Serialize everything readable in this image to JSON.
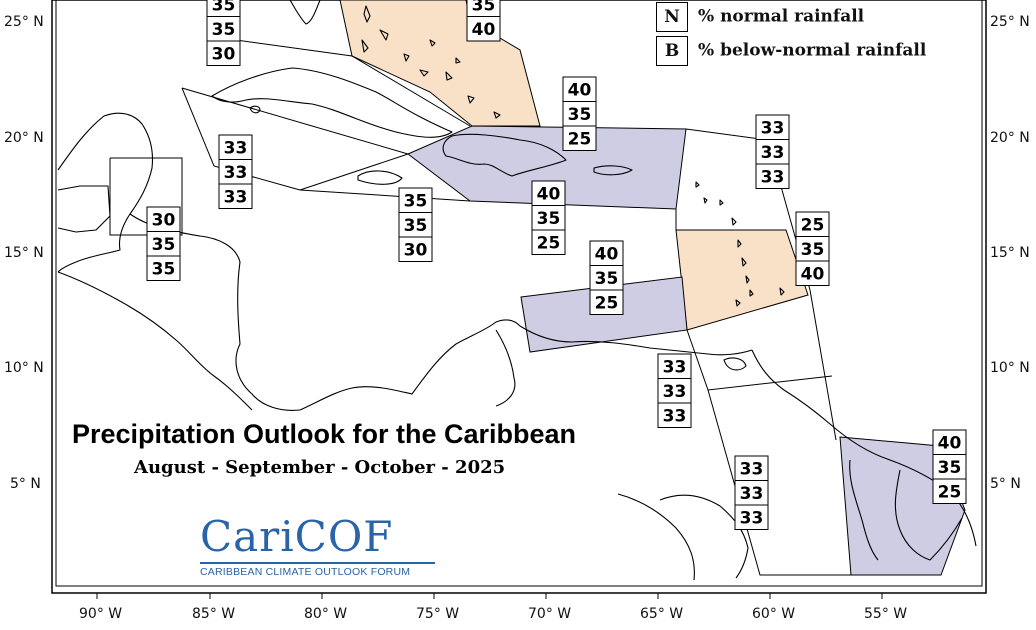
{
  "title": "Precipitation Outlook for the Caribbean",
  "subtitle": "August - September - October - 2025",
  "logo": {
    "wordmark": "CariCOF",
    "tagline": "CARIBBEAN CLIMATE OUTLOOK FORUM"
  },
  "legend": [
    {
      "key": "N",
      "label": "% normal rainfall"
    },
    {
      "key": "B",
      "label": "% below-normal rainfall"
    }
  ],
  "axes": {
    "lon_ticks": [
      "90° W",
      "85° W",
      "80° W",
      "75° W",
      "70° W",
      "65° W",
      "60° W",
      "55° W"
    ],
    "lat_ticks": [
      "25° N",
      "20° N",
      "15° N",
      "10° N",
      "5° N"
    ]
  },
  "colors": {
    "below_normal": "#cfcde4",
    "above_normal": "#f9e1c8",
    "outline": "#000000"
  },
  "probability_boxes": [
    {
      "region": "bahamas-north-west",
      "values": [
        35,
        35,
        30
      ]
    },
    {
      "region": "bahamas-east",
      "values": [
        35,
        40
      ]
    },
    {
      "region": "greater-antilles-east",
      "values": [
        40,
        35,
        25
      ]
    },
    {
      "region": "cayman-jamaica-west",
      "values": [
        33,
        33,
        33
      ]
    },
    {
      "region": "belize-guatemala",
      "values": [
        30,
        35,
        35
      ]
    },
    {
      "region": "jamaica-south",
      "values": [
        35,
        35,
        30
      ]
    },
    {
      "region": "hispaniola-south",
      "values": [
        40,
        35,
        25
      ]
    },
    {
      "region": "northern-leewards",
      "values": [
        33,
        33,
        33
      ]
    },
    {
      "region": "windwards",
      "values": [
        25,
        35,
        40
      ]
    },
    {
      "region": "abc-islands",
      "values": [
        40,
        35,
        25
      ]
    },
    {
      "region": "trinidad",
      "values": [
        33,
        33,
        33
      ]
    },
    {
      "region": "guyana",
      "values": [
        33,
        33,
        33
      ]
    },
    {
      "region": "suriname-french-guiana",
      "values": [
        40,
        35,
        25
      ]
    }
  ]
}
